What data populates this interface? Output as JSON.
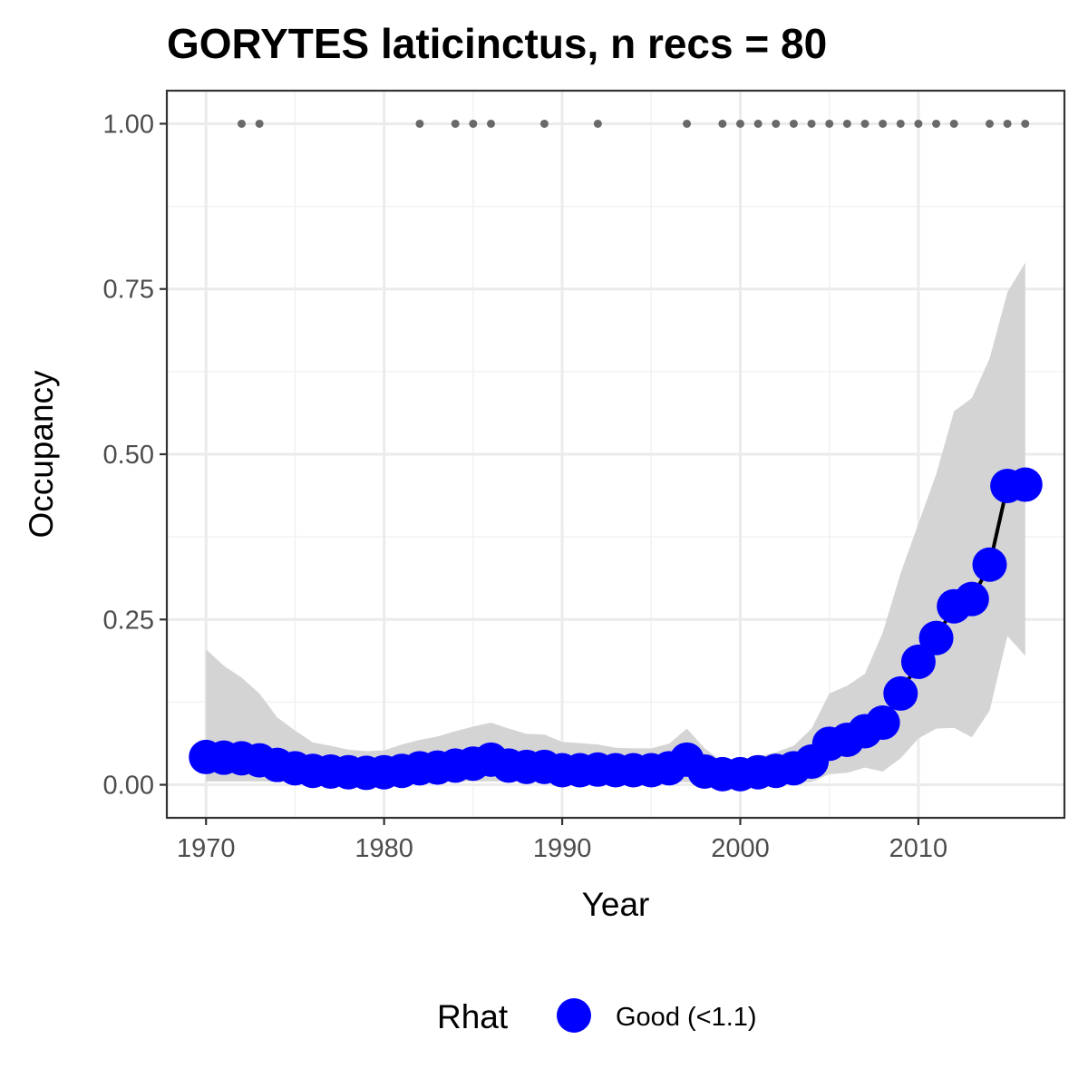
{
  "chart_data": {
    "type": "line",
    "title": "GORYTES laticinctus, n recs = 80",
    "xlabel": "Year",
    "ylabel": "Occupancy",
    "xlim": [
      1967.8,
      2018.2
    ],
    "ylim": [
      -0.05,
      1.05
    ],
    "x_ticks": [
      1970,
      1980,
      1990,
      2000,
      2010
    ],
    "x_tick_labels": [
      "1970",
      "1980",
      "1990",
      "2000",
      "2010"
    ],
    "y_ticks": [
      0,
      0.25,
      0.5,
      0.75,
      1.0
    ],
    "y_tick_labels": [
      "0.00",
      "0.25",
      "0.50",
      "0.75",
      "1.00"
    ],
    "grid": true,
    "colors": {
      "point": "#0000ff",
      "line": "#000000",
      "ribbon": "#d4d4d4",
      "records": "#696969",
      "grid_major": "#ebebeb",
      "grid_minor": "#f2f2f2",
      "panel_border": "#333333"
    },
    "years": [
      1970,
      1971,
      1972,
      1973,
      1974,
      1975,
      1976,
      1977,
      1978,
      1979,
      1980,
      1981,
      1982,
      1983,
      1984,
      1985,
      1986,
      1987,
      1988,
      1989,
      1990,
      1991,
      1992,
      1993,
      1994,
      1995,
      1996,
      1997,
      1998,
      1999,
      2000,
      2001,
      2002,
      2003,
      2004,
      2005,
      2006,
      2007,
      2008,
      2009,
      2010,
      2011,
      2012,
      2013,
      2014,
      2015,
      2016
    ],
    "series": [
      {
        "values": [
          0.042,
          0.041,
          0.04,
          0.037,
          0.03,
          0.025,
          0.021,
          0.02,
          0.019,
          0.018,
          0.019,
          0.021,
          0.025,
          0.026,
          0.029,
          0.032,
          0.038,
          0.029,
          0.027,
          0.027,
          0.022,
          0.022,
          0.023,
          0.022,
          0.022,
          0.022,
          0.025,
          0.038,
          0.02,
          0.016,
          0.016,
          0.019,
          0.021,
          0.025,
          0.035,
          0.062,
          0.068,
          0.081,
          0.094,
          0.138,
          0.186,
          0.222,
          0.27,
          0.281,
          0.333,
          0.452,
          0.454
        ],
        "lower": [
          0.005,
          0.005,
          0.005,
          0.005,
          0.004,
          0.004,
          0.004,
          0.004,
          0.004,
          0.004,
          0.004,
          0.004,
          0.004,
          0.005,
          0.005,
          0.005,
          0.005,
          0.005,
          0.005,
          0.005,
          0.005,
          0.005,
          0.005,
          0.004,
          0.004,
          0.004,
          0.004,
          0.004,
          0.003,
          0.002,
          0.002,
          0.002,
          0.002,
          0.003,
          0.004,
          0.016,
          0.018,
          0.026,
          0.02,
          0.04,
          0.07,
          0.085,
          0.086,
          0.072,
          0.112,
          0.225,
          0.195
        ],
        "upper": [
          0.205,
          0.18,
          0.162,
          0.138,
          0.102,
          0.082,
          0.064,
          0.059,
          0.053,
          0.051,
          0.052,
          0.061,
          0.068,
          0.073,
          0.081,
          0.088,
          0.094,
          0.085,
          0.077,
          0.076,
          0.065,
          0.063,
          0.061,
          0.056,
          0.055,
          0.055,
          0.062,
          0.085,
          0.055,
          0.035,
          0.036,
          0.043,
          0.049,
          0.059,
          0.085,
          0.138,
          0.15,
          0.168,
          0.23,
          0.32,
          0.395,
          0.47,
          0.565,
          0.585,
          0.645,
          0.745,
          0.79
        ]
      }
    ],
    "record_years": [
      1972,
      1973,
      1982,
      1984,
      1985,
      1986,
      1989,
      1992,
      1997,
      1999,
      2000,
      2001,
      2002,
      2003,
      2004,
      2005,
      2006,
      2007,
      2008,
      2009,
      2010,
      2011,
      2012,
      2014,
      2015,
      2016
    ],
    "record_value": 1.0,
    "legend": {
      "position": "bottom",
      "title": "Rhat",
      "label": "Good (<1.1)"
    }
  }
}
